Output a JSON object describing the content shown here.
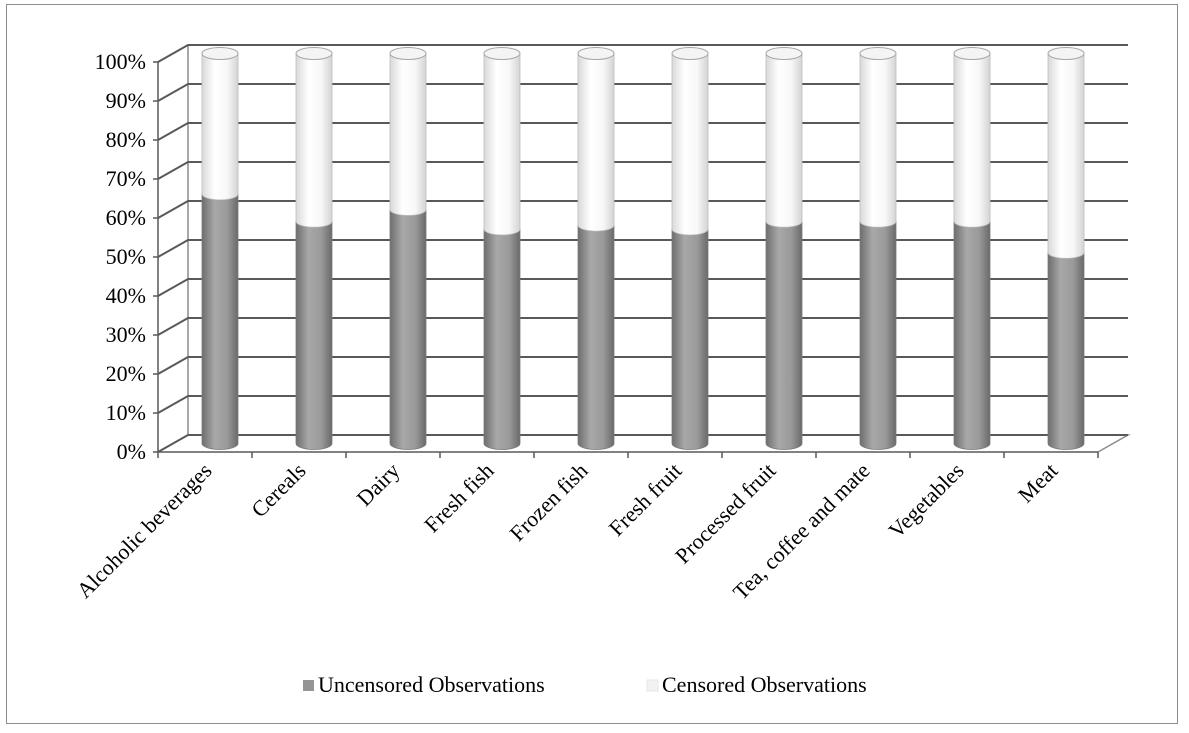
{
  "chart_data": {
    "type": "bar",
    "stacked": true,
    "percent": true,
    "style": "3d-cylinder",
    "categories": [
      "Alcoholic beverages",
      "Cereals",
      "Dairy",
      "Fresh fish",
      "Frozen fish",
      "Fresh fruit",
      "Processed fruit",
      "Tea, coffee and mate",
      "Vegetables",
      "Meat"
    ],
    "series": [
      {
        "name": "Uncensored Observations",
        "values": [
          64,
          57,
          60,
          55,
          56,
          55,
          57,
          57,
          57,
          49
        ],
        "color": "#959595"
      },
      {
        "name": "Censored Observations",
        "values": [
          36,
          43,
          40,
          45,
          44,
          45,
          43,
          43,
          43,
          51
        ],
        "color": "#f2f2f2"
      }
    ],
    "y_ticks": [
      "0%",
      "10%",
      "20%",
      "30%",
      "40%",
      "50%",
      "60%",
      "70%",
      "80%",
      "90%",
      "100%"
    ],
    "ylim": [
      0,
      100
    ],
    "grid": true,
    "legend_position": "bottom"
  }
}
